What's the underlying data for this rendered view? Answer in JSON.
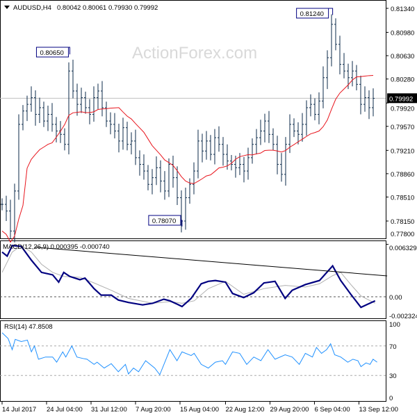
{
  "header": {
    "symbol": "AUDUSD,H4",
    "ohlc": "0.80042 0.80061 0.79930 0.79992"
  },
  "watermark": "ActionForex.com",
  "colors": {
    "bars": "#0b2a4a",
    "ma": "#e8141c",
    "macd": "#000080",
    "signal": "#b0b0b0",
    "rsi": "#1e90ff",
    "current_price_bg": "#000000"
  },
  "chart_data": [
    {
      "type": "candlestick",
      "title": "AUDUSD,H4",
      "ylim": [
        0.778,
        0.8134
      ],
      "y_ticks": [
        "0.81340",
        "0.80980",
        "0.80630",
        "0.80280",
        "0.79920",
        "0.79570",
        "0.79210",
        "0.78860",
        "0.78510",
        "0.78150",
        "0.77800"
      ],
      "current_price": "0.79992",
      "current_price_value": 0.79992,
      "annotations": [
        {
          "label": "0.80650",
          "bar": 67,
          "price": 0.8065
        },
        {
          "label": "0.81240",
          "bar": 327,
          "price": 0.8124
        },
        {
          "label": "0.78070",
          "bar": 178,
          "price": 0.7807
        }
      ],
      "closes": [
        0.784,
        0.783,
        0.78,
        0.786,
        0.796,
        0.798,
        0.799,
        0.8,
        0.7975,
        0.7985,
        0.7965,
        0.7975,
        0.796,
        0.795,
        0.7945,
        0.793,
        0.804,
        0.801,
        0.799,
        0.8,
        0.7985,
        0.7975,
        0.8,
        0.801,
        0.7985,
        0.7965,
        0.796,
        0.795,
        0.7935,
        0.7955,
        0.793,
        0.7935,
        0.791,
        0.79,
        0.789,
        0.787,
        0.788,
        0.7895,
        0.7875,
        0.786,
        0.79,
        0.788,
        0.785,
        0.7815,
        0.785,
        0.787,
        0.789,
        0.7935,
        0.792,
        0.7935,
        0.7915,
        0.794,
        0.793,
        0.7915,
        0.7905,
        0.79,
        0.7895,
        0.79,
        0.789,
        0.791,
        0.793,
        0.794,
        0.795,
        0.7965,
        0.7945,
        0.793,
        0.79,
        0.7885,
        0.793,
        0.796,
        0.795,
        0.7945,
        0.796,
        0.7985,
        0.799,
        0.7975,
        0.7995,
        0.803,
        0.806,
        0.811,
        0.808,
        0.805,
        0.804,
        0.803,
        0.804,
        0.802,
        0.799,
        0.8,
        0.7985,
        0.7999
      ]
    },
    {
      "type": "line",
      "title": "MACD(12,26,9) 0.000395 -0.000740",
      "ylim": [
        -0.002324,
        0.006329
      ],
      "y_ticks": [
        "0.006329",
        "0.00",
        "-0.002324"
      ],
      "macd": [
        [
          0,
          0.0055
        ],
        [
          5,
          0.005
        ],
        [
          10,
          0.0063
        ],
        [
          19,
          0.0062
        ],
        [
          29,
          0.0045
        ],
        [
          39,
          0.003
        ],
        [
          50,
          0.0027
        ],
        [
          56,
          0.0018
        ],
        [
          61,
          0.003
        ],
        [
          67,
          0.0025
        ],
        [
          77,
          0.0021
        ],
        [
          82,
          0.0023
        ],
        [
          91,
          0.001
        ],
        [
          98,
          0.0002
        ],
        [
          108,
          0.0002
        ],
        [
          115,
          -0.0004
        ],
        [
          125,
          -0.0007
        ],
        [
          139,
          -0.001
        ],
        [
          149,
          -0.0008
        ],
        [
          160,
          -0.0003
        ],
        [
          166,
          -0.0005
        ],
        [
          173,
          -0.0009
        ],
        [
          178,
          -0.0012
        ],
        [
          187,
          -0.0002
        ],
        [
          197,
          0.0016
        ],
        [
          204,
          0.0019
        ],
        [
          211,
          0.002
        ],
        [
          221,
          0.0018
        ],
        [
          228,
          0.0004
        ],
        [
          239,
          -0.0001
        ],
        [
          249,
          0.0005
        ],
        [
          259,
          0.0017
        ],
        [
          270,
          0.0019
        ],
        [
          280,
          -0.0002
        ],
        [
          287,
          0.0008
        ],
        [
          300,
          0.0015
        ],
        [
          314,
          0.002
        ],
        [
          327,
          0.0038
        ],
        [
          335,
          0.002
        ],
        [
          345,
          0.0003
        ],
        [
          355,
          -0.0013
        ],
        [
          362,
          -0.0009
        ],
        [
          369,
          -0.0005
        ]
      ],
      "signal": [
        [
          0,
          0.003
        ],
        [
          10,
          0.0055
        ],
        [
          19,
          0.0063
        ],
        [
          29,
          0.0055
        ],
        [
          39,
          0.004
        ],
        [
          50,
          0.003
        ],
        [
          61,
          0.0025
        ],
        [
          77,
          0.0024
        ],
        [
          91,
          0.0017
        ],
        [
          108,
          0.0008
        ],
        [
          125,
          -0.0002
        ],
        [
          149,
          -0.0008
        ],
        [
          166,
          -0.0006
        ],
        [
          178,
          -0.0008
        ],
        [
          190,
          -0.0005
        ],
        [
          204,
          0.001
        ],
        [
          221,
          0.0019
        ],
        [
          239,
          0.0003
        ],
        [
          259,
          0.001
        ],
        [
          280,
          0.0014
        ],
        [
          300,
          0.0012
        ],
        [
          314,
          0.0016
        ],
        [
          327,
          0.0026
        ],
        [
          335,
          0.003
        ],
        [
          345,
          0.0015
        ],
        [
          355,
          0.0001
        ],
        [
          369,
          -0.0008
        ]
      ],
      "trendline": [
        [
          32,
          0.0061
        ],
        [
          381,
          0.00257
        ]
      ]
    },
    {
      "type": "line",
      "title": "RSI(14) 47.8508",
      "ylim": [
        0,
        100
      ],
      "y_ticks": [
        "100",
        "70",
        "30",
        "0"
      ],
      "levels": [
        70,
        30
      ],
      "rsi": [
        [
          0,
          88
        ],
        [
          6,
          80
        ],
        [
          10,
          65
        ],
        [
          13,
          79
        ],
        [
          19,
          76
        ],
        [
          25,
          78
        ],
        [
          29,
          62
        ],
        [
          32,
          70
        ],
        [
          36,
          52
        ],
        [
          43,
          55
        ],
        [
          50,
          55
        ],
        [
          54,
          48
        ],
        [
          60,
          62
        ],
        [
          63,
          55
        ],
        [
          69,
          70
        ],
        [
          74,
          55
        ],
        [
          80,
          53
        ],
        [
          84,
          52
        ],
        [
          91,
          45
        ],
        [
          94,
          48
        ],
        [
          101,
          40
        ],
        [
          108,
          46
        ],
        [
          115,
          35
        ],
        [
          122,
          45
        ],
        [
          125,
          32
        ],
        [
          130,
          40
        ],
        [
          135,
          35
        ],
        [
          142,
          50
        ],
        [
          151,
          40
        ],
        [
          156,
          31
        ],
        [
          166,
          65
        ],
        [
          173,
          50
        ],
        [
          178,
          62
        ],
        [
          187,
          57
        ],
        [
          190,
          60
        ],
        [
          197,
          45
        ],
        [
          204,
          40
        ],
        [
          211,
          48
        ],
        [
          218,
          50
        ],
        [
          221,
          45
        ],
        [
          228,
          62
        ],
        [
          235,
          60
        ],
        [
          242,
          45
        ],
        [
          249,
          55
        ],
        [
          256,
          50
        ],
        [
          263,
          65
        ],
        [
          270,
          52
        ],
        [
          280,
          58
        ],
        [
          287,
          55
        ],
        [
          294,
          45
        ],
        [
          300,
          60
        ],
        [
          307,
          55
        ],
        [
          311,
          68
        ],
        [
          316,
          60
        ],
        [
          321,
          65
        ],
        [
          325,
          73
        ],
        [
          329,
          58
        ],
        [
          335,
          55
        ],
        [
          342,
          48
        ],
        [
          347,
          52
        ],
        [
          352,
          50
        ],
        [
          355,
          42
        ],
        [
          360,
          47
        ],
        [
          364,
          45
        ],
        [
          367,
          52
        ],
        [
          371,
          48
        ]
      ]
    }
  ],
  "x_axis": {
    "labels": [
      {
        "bar": 0,
        "text": "14 Jul 2017"
      },
      {
        "bar": 44,
        "text": "24 Jul 04:00"
      },
      {
        "bar": 88,
        "text": "31 Jul 12:00"
      },
      {
        "bar": 132,
        "text": "7 Aug 20:00"
      },
      {
        "bar": 176,
        "text": "15 Aug 04:00"
      },
      {
        "bar": 221,
        "text": "22 Aug 12:00"
      },
      {
        "bar": 265,
        "text": "29 Aug 20:00"
      },
      {
        "bar": 309,
        "text": "6 Sep 04:00"
      },
      {
        "bar": 353,
        "text": "13 Sep 12:00"
      }
    ]
  }
}
